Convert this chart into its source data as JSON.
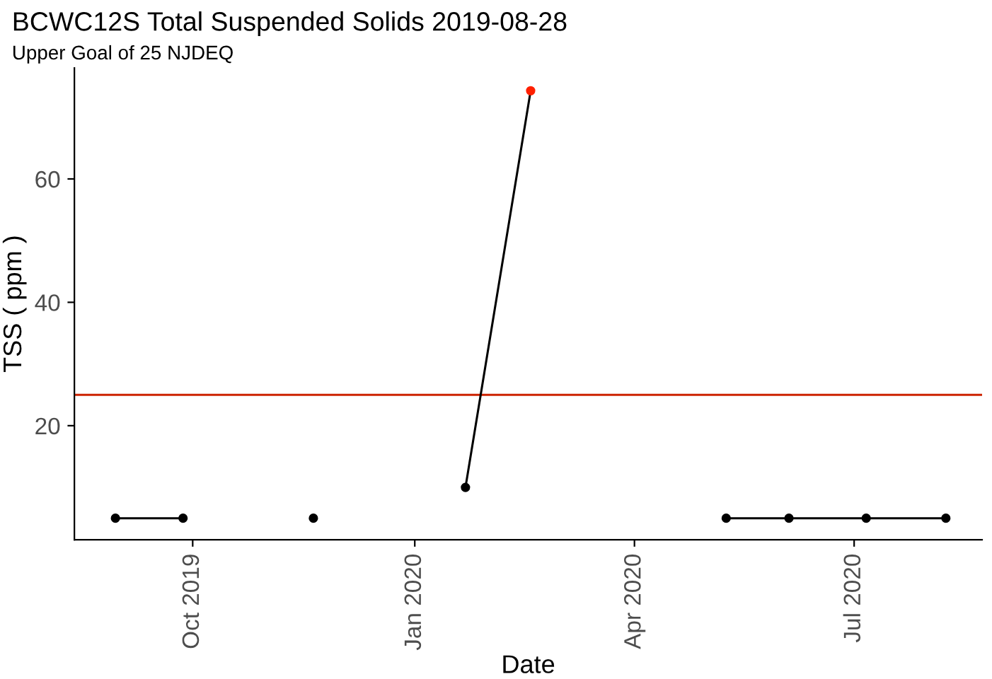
{
  "chart_data": {
    "type": "line",
    "title": "BCWC12S Total Suspended Solids 2019-08-28",
    "subtitle": "Upper Goal of 25 NJDEQ",
    "xlabel": "Date",
    "ylabel": "TSS ( ppm )",
    "series": [
      {
        "x": [
          "2019-08-30",
          "2019-09-27"
        ],
        "values": [
          5,
          5
        ],
        "color": "#000000",
        "colors": [
          "#000000",
          "#000000"
        ]
      },
      {
        "x": [
          "2019-11-20"
        ],
        "values": [
          5
        ],
        "color": "#000000",
        "colors": [
          "#000000"
        ]
      },
      {
        "x": [
          "2020-01-22",
          "2020-02-18"
        ],
        "values": [
          10,
          74.3
        ],
        "color": "#000000",
        "colors": [
          "#000000",
          "#ff2000"
        ]
      },
      {
        "x": [
          "2020-05-09",
          "2020-06-04",
          "2020-07-06",
          "2020-08-08"
        ],
        "values": [
          5,
          5,
          5,
          5
        ],
        "color": "#000000",
        "colors": [
          "#000000",
          "#000000",
          "#000000",
          "#000000"
        ]
      }
    ],
    "xlim": [
      "2019-08-13",
      "2020-08-23"
    ],
    "ylim": [
      1.5,
      78
    ],
    "xticks": [
      {
        "value": "2019-10-01",
        "label": "Oct 2019"
      },
      {
        "value": "2020-01-01",
        "label": "Jan 2020"
      },
      {
        "value": "2020-04-01",
        "label": "Apr 2020"
      },
      {
        "value": "2020-07-01",
        "label": "Jul 2020"
      }
    ],
    "yticks": [
      20,
      40,
      60
    ],
    "ref_lines": [
      {
        "axis": "y",
        "value": 25,
        "color": "#cc2200"
      }
    ],
    "grid": false,
    "legend": false,
    "marker": "circle",
    "line_style": "solid"
  }
}
